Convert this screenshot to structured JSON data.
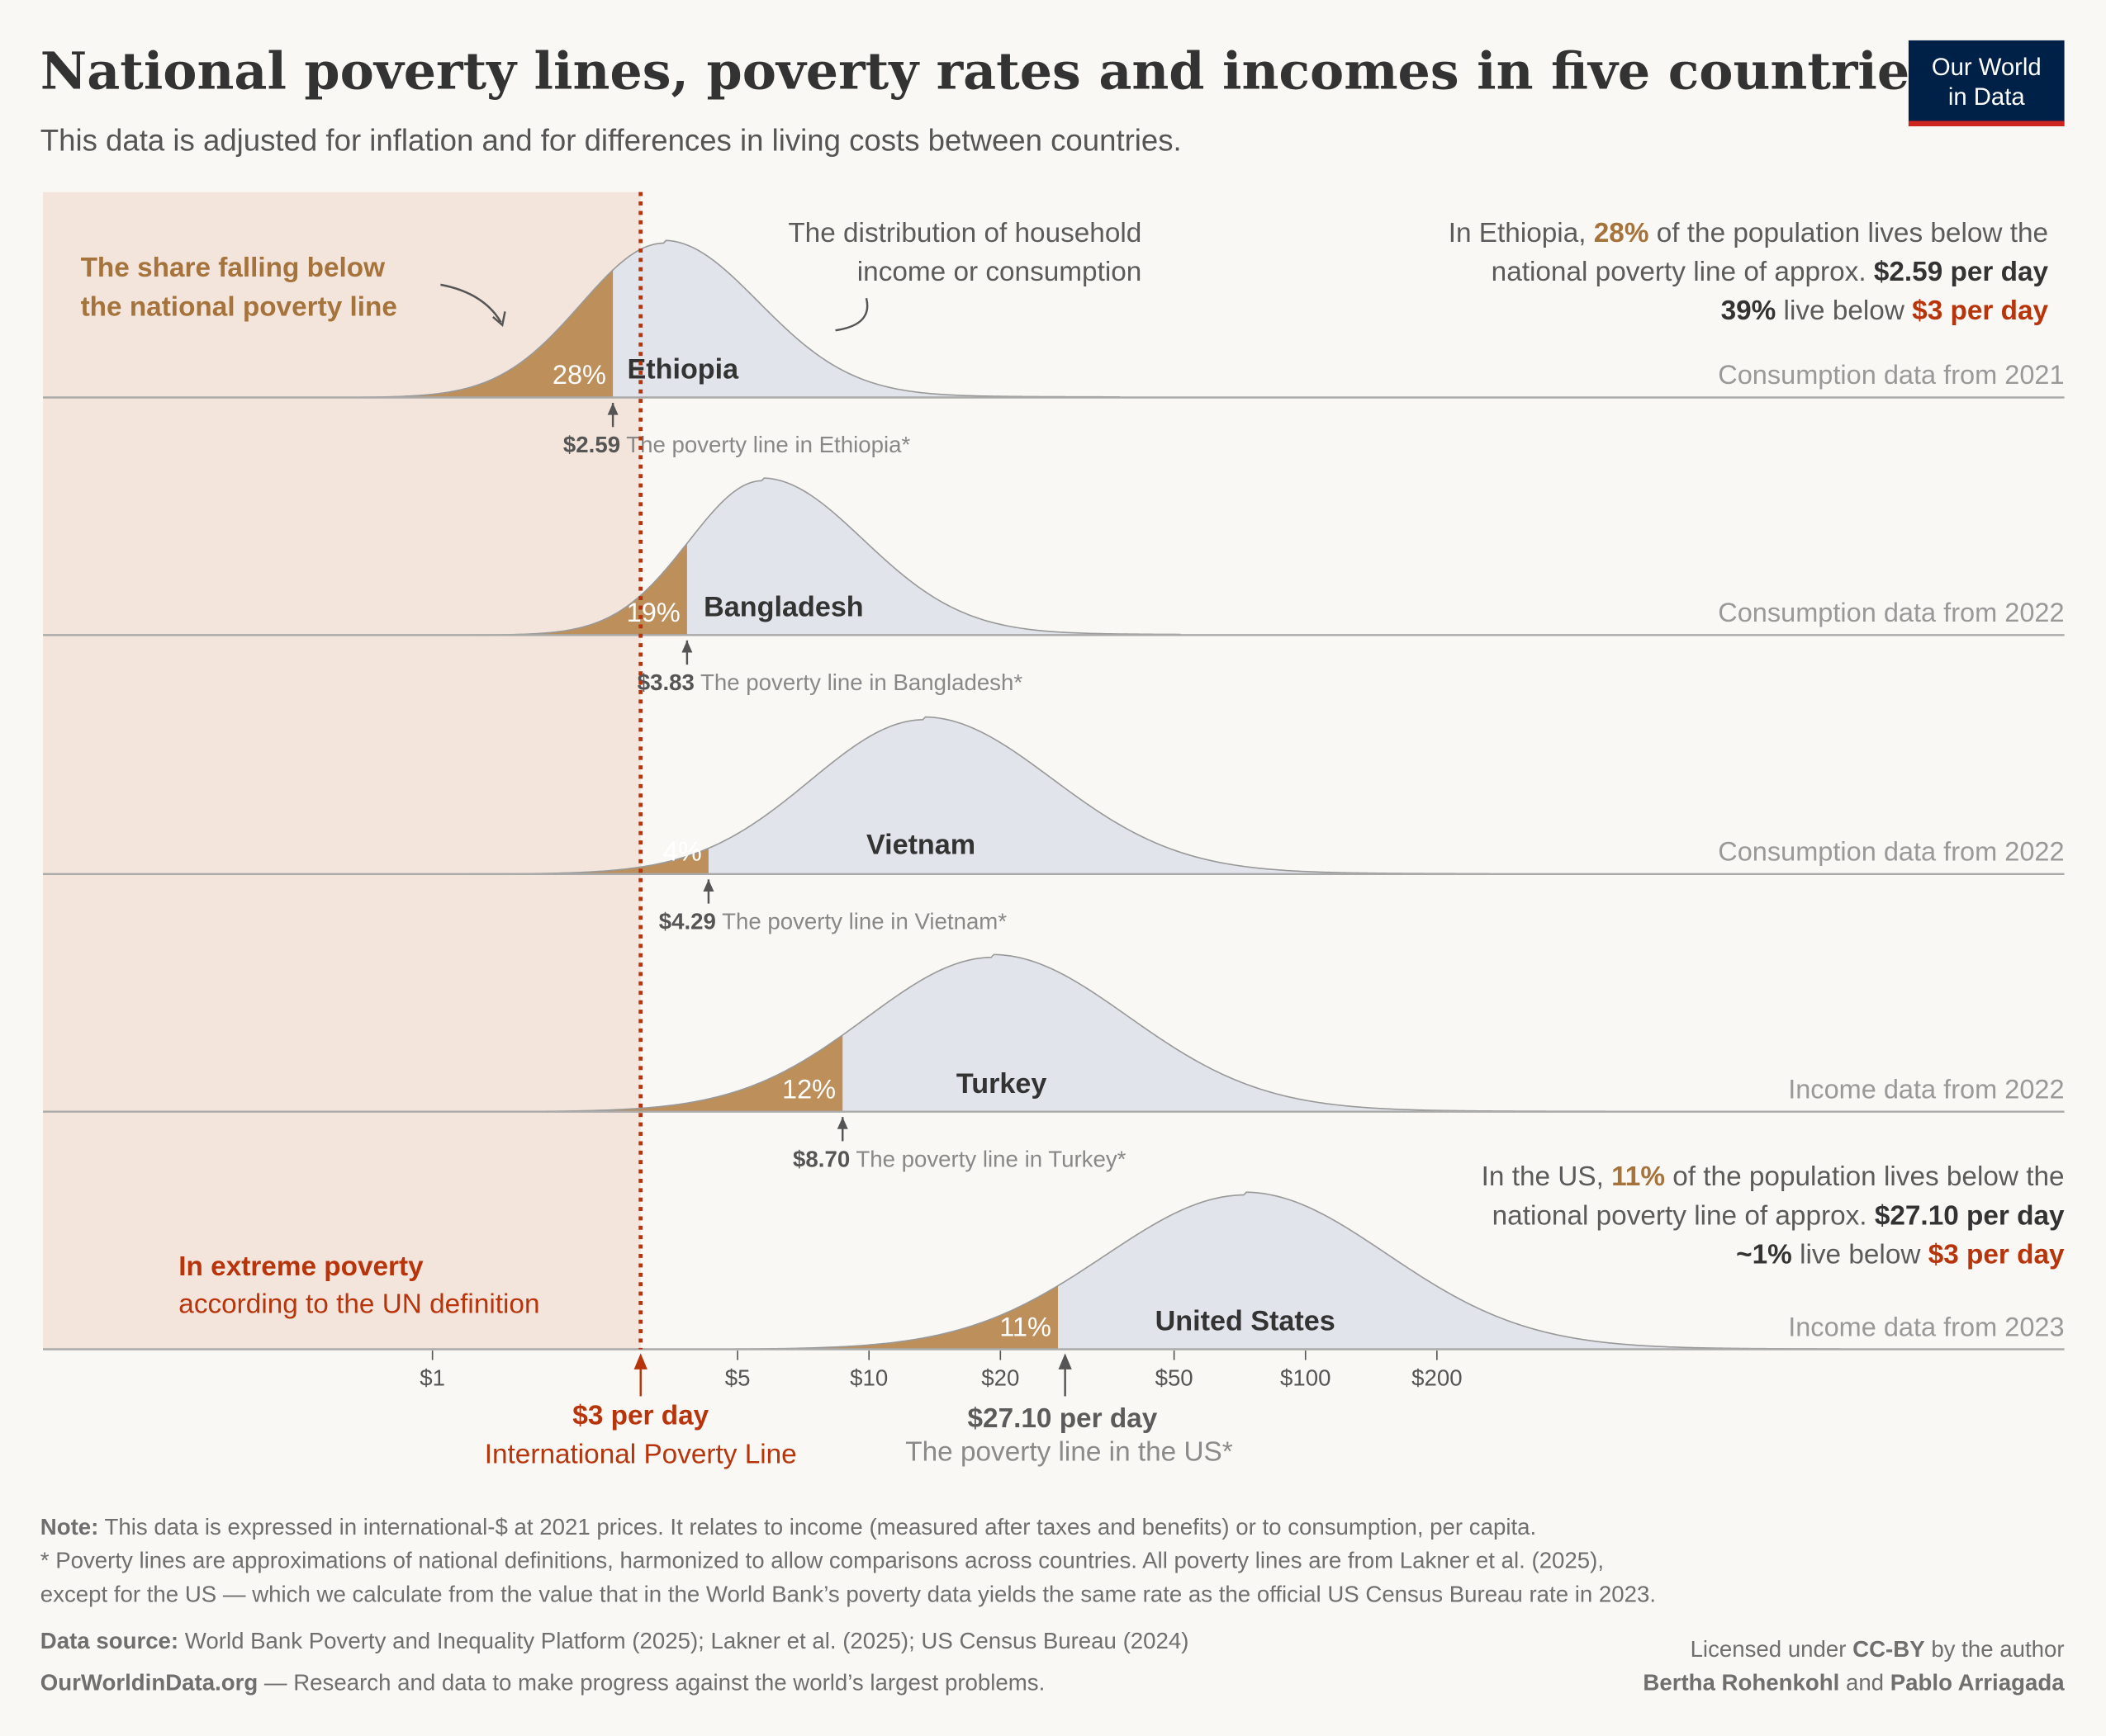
{
  "title": "National poverty lines, poverty rates and incomes in five countries",
  "subtitle": "This data is adjusted for inflation and for differences in living costs between countries.",
  "logo": {
    "line1": "Our World",
    "line2": "in Data",
    "bg": "#002147",
    "accent": "#ce261e"
  },
  "colors": {
    "below_line": "#bd8f5b",
    "above_line": "#e1e4ea",
    "extreme_poverty_shade": "#f3e5dc",
    "ipl": "#b8350c"
  },
  "annotations": {
    "share_below": [
      "The share falling below",
      "the national poverty line"
    ],
    "distribution": [
      "The distribution of household",
      "income or consumption"
    ],
    "ethiopia": {
      "l1a": "In Ethiopia, ",
      "l1b": "28%",
      "l1c": " of the population lives below the",
      "l2a": "national poverty line of approx. ",
      "l2b": "$2.59 per day",
      "l3a": "39%",
      "l3b": " live below ",
      "l3c": "$3 per day"
    },
    "us": {
      "l1a": "In the US, ",
      "l1b": "11%",
      "l1c": " of the population lives below the",
      "l2a": "national poverty line of approx. ",
      "l2b": "$27.10 per day",
      "l3a": "~1%",
      "l3b": " live below ",
      "l3c": "$3 per day"
    },
    "extreme": [
      "In extreme poverty",
      "according to the UN definition"
    ],
    "ipl": {
      "value": "$3 per day",
      "label": "International Poverty Line"
    },
    "us_line": {
      "value": "$27.10 per day",
      "label": "The poverty line in the US*"
    }
  },
  "chart_data": {
    "type": "area",
    "title": "National poverty lines, poverty rates and incomes in five countries",
    "x_scale": "log",
    "x_unit": "international-$ per day (2021 prices)",
    "x_ticks": [
      {
        "value": 1,
        "label": "$1"
      },
      {
        "value": 5,
        "label": "$5"
      },
      {
        "value": 10,
        "label": "$10"
      },
      {
        "value": 20,
        "label": "$20"
      },
      {
        "value": 50,
        "label": "$50"
      },
      {
        "value": 100,
        "label": "$100"
      },
      {
        "value": 200,
        "label": "$200"
      }
    ],
    "international_poverty_line": 3,
    "series": [
      {
        "name": "Ethiopia",
        "poverty_line": 2.59,
        "poverty_line_label": "$2.59",
        "line_caption": "The poverty line in Ethiopia*",
        "share_below": "28%",
        "source_note": "Consumption data from 2021",
        "mode": 3.4
      },
      {
        "name": "Bangladesh",
        "poverty_line": 3.83,
        "poverty_line_label": "$3.83",
        "line_caption": "The poverty line in Bangladesh*",
        "share_below": "19%",
        "source_note": "Consumption data from 2022",
        "mode": 5.7
      },
      {
        "name": "Vietnam",
        "poverty_line": 4.29,
        "poverty_line_label": "$4.29",
        "line_caption": "The poverty line in Vietnam*",
        "share_below": "4%",
        "source_note": "Consumption data from 2022",
        "mode": 13.4
      },
      {
        "name": "Turkey",
        "poverty_line": 8.7,
        "poverty_line_label": "$8.70",
        "line_caption": "The poverty line in Turkey*",
        "share_below": "12%",
        "source_note": "Income data from 2022",
        "mode": 19.3
      },
      {
        "name": "United States",
        "poverty_line": 27.1,
        "poverty_line_label": "$27.10",
        "line_caption": "The poverty line in the US*",
        "share_below": "11%",
        "source_note": "Income data from 2023",
        "mode": 73
      }
    ]
  },
  "footer": {
    "note_label": "Note:",
    "note": " This data is expressed in international-$ at 2021 prices. It relates to income (measured after taxes and benefits) or to consumption, per capita.",
    "note2": "* Poverty lines are approximations of national definitions, harmonized to allow comparisons across countries. All poverty lines are from Lakner et al. (2025),",
    "note3": "except for the US — which we calculate from the value that in the World Bank’s poverty data yields the same rate as the official US Census Bureau rate in 2023.",
    "source_label": "Data source:",
    "source": " World Bank Poverty and Inequality Platform (2025); Lakner et al. (2025); US Census Bureau (2024)",
    "site": "OurWorldinData.org",
    "tagline": " — Research and data to make progress against the world’s largest problems.",
    "license_a": "Licensed under ",
    "license_b": "CC-BY",
    "license_c": " by the author",
    "author1": "Bertha Rohenkohl",
    "and": " and ",
    "author2": "Pablo Arriagada"
  }
}
